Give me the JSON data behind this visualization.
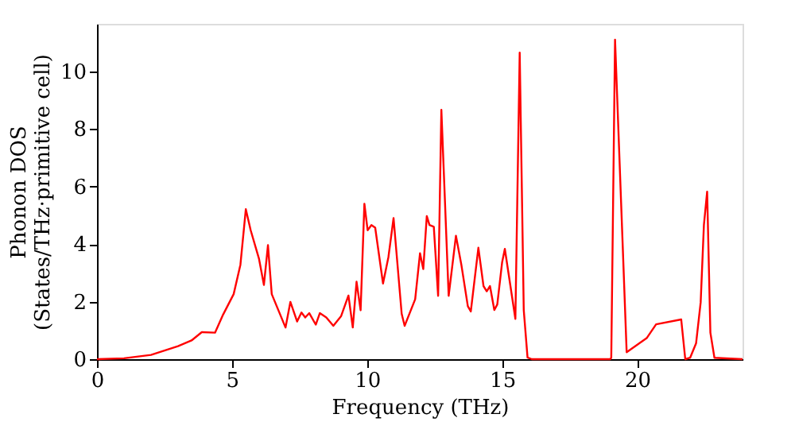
{
  "chart_data": {
    "type": "line",
    "xlabel": "Frequency (THz)",
    "ylabel": "Phonon DOS\n(States/THz·primitive cell)",
    "xlim": [
      0,
      23.9
    ],
    "ylim": [
      0,
      11.65
    ],
    "xticks": [
      0,
      5,
      10,
      15,
      20
    ],
    "yticks": [
      0,
      2,
      4,
      6,
      8,
      10
    ],
    "grid": false,
    "legend": false,
    "marker": "none",
    "line_style": "solid",
    "series": [
      {
        "color": "#ff0000",
        "x": [
          0,
          1,
          2,
          3,
          3.5,
          3.88,
          4.37,
          4.67,
          5.06,
          5.31,
          5.51,
          5.69,
          6.0,
          6.18,
          6.33,
          6.47,
          6.98,
          7.16,
          7.41,
          7.57,
          7.71,
          7.86,
          8.1,
          8.25,
          8.49,
          8.75,
          9.04,
          9.31,
          9.47,
          9.61,
          9.76,
          9.9,
          10.02,
          10.16,
          10.3,
          10.59,
          10.79,
          10.98,
          11.28,
          11.39,
          11.78,
          11.96,
          12.08,
          12.21,
          12.31,
          12.47,
          12.63,
          12.75,
          13.02,
          13.29,
          13.49,
          13.73,
          13.84,
          14.12,
          14.31,
          14.43,
          14.55,
          14.71,
          14.82,
          15.0,
          15.1,
          15.49,
          15.65,
          15.8,
          15.94,
          16.1,
          19.0,
          19.04,
          19.18,
          19.41,
          19.61,
          20.35,
          20.7,
          21.63,
          21.78,
          21.96,
          22.18,
          22.35,
          22.47,
          22.59,
          22.71,
          22.86,
          23.9
        ],
        "values": [
          0,
          0.03,
          0.15,
          0.45,
          0.65,
          0.94,
          0.92,
          1.55,
          2.26,
          3.28,
          5.21,
          4.48,
          3.48,
          2.58,
          3.96,
          2.26,
          1.1,
          1.99,
          1.31,
          1.62,
          1.45,
          1.6,
          1.2,
          1.6,
          1.45,
          1.16,
          1.5,
          2.21,
          1.1,
          2.69,
          1.7,
          5.4,
          4.48,
          4.66,
          4.57,
          2.63,
          3.55,
          4.9,
          1.58,
          1.16,
          2.08,
          3.68,
          3.13,
          4.97,
          4.66,
          4.6,
          2.2,
          8.66,
          2.2,
          4.29,
          3.28,
          1.84,
          1.66,
          3.87,
          2.54,
          2.36,
          2.54,
          1.71,
          1.9,
          3.37,
          3.83,
          1.4,
          10.65,
          1.71,
          0.06,
          0,
          0,
          0.05,
          11.1,
          5.3,
          0.24,
          0.73,
          1.21,
          1.38,
          0,
          0.05,
          0.55,
          1.97,
          4.66,
          5.82,
          0.92,
          0.05,
          0
        ]
      }
    ]
  }
}
